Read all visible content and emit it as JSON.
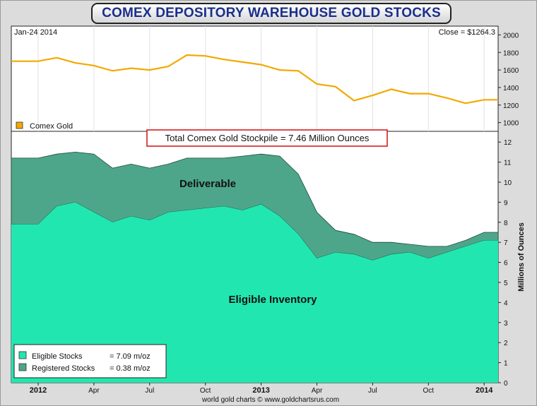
{
  "title": "COMEX DEPOSITORY WAREHOUSE GOLD STOCKS",
  "header": {
    "date": "Jan-24  2014",
    "close": "Close = $1264.3"
  },
  "stockpile_box": "Total Comex Gold Stockpile = 7.46 Million Ounces",
  "area_labels": {
    "deliverable": "Deliverable",
    "eligible": "Eligible Inventory"
  },
  "footer": "world gold charts © www.goldchartsrus.com",
  "colors": {
    "gold_line": "#f2a900",
    "eligible": "#22e6b0",
    "registered": "#4ea68a",
    "box_border": "#d01010",
    "title": "#1a2f8c"
  },
  "chart_data": [
    {
      "type": "line",
      "legend": [
        "Comex Gold"
      ],
      "ylim": [
        900,
        2100
      ],
      "y_ticks": [
        "1000",
        "1200",
        "1400",
        "1600",
        "1800",
        "2000"
      ],
      "x_ticks": [
        "2012",
        "Apr",
        "Jul",
        "Oct",
        "2013",
        "Apr",
        "Jul",
        "Oct",
        "2014"
      ],
      "x": [
        "2012-01",
        "2012-02",
        "2012-03",
        "2012-04",
        "2012-05",
        "2012-06",
        "2012-07",
        "2012-08",
        "2012-09",
        "2012-10",
        "2012-11",
        "2012-12",
        "2013-01",
        "2013-02",
        "2013-03",
        "2013-04",
        "2013-05",
        "2013-06",
        "2013-07",
        "2013-08",
        "2013-09",
        "2013-10",
        "2013-11",
        "2013-12",
        "2014-01"
      ],
      "series": [
        {
          "name": "Comex Gold",
          "values": [
            1700,
            1740,
            1680,
            1650,
            1590,
            1620,
            1600,
            1640,
            1770,
            1760,
            1720,
            1690,
            1660,
            1600,
            1590,
            1440,
            1410,
            1250,
            1310,
            1380,
            1330,
            1330,
            1280,
            1220,
            1260
          ]
        }
      ]
    },
    {
      "type": "area",
      "ylabel": "Millions of Ounces",
      "ylim": [
        0,
        12.5
      ],
      "y_ticks": [
        "0",
        "1",
        "2",
        "3",
        "4",
        "5",
        "6",
        "7",
        "8",
        "9",
        "10",
        "11",
        "12"
      ],
      "x_ticks": [
        "2012",
        "Apr",
        "Jul",
        "Oct",
        "2013",
        "Apr",
        "Jul",
        "Oct",
        "2014"
      ],
      "legend": [
        {
          "label": "Eligible Stocks",
          "value": "= 7.09 m/oz"
        },
        {
          "label": "Registered Stocks",
          "value": "= 0.38 m/oz"
        }
      ],
      "x": [
        "2012-01",
        "2012-02",
        "2012-03",
        "2012-04",
        "2012-05",
        "2012-06",
        "2012-07",
        "2012-08",
        "2012-09",
        "2012-10",
        "2012-11",
        "2012-12",
        "2013-01",
        "2013-02",
        "2013-03",
        "2013-04",
        "2013-05",
        "2013-06",
        "2013-07",
        "2013-08",
        "2013-09",
        "2013-10",
        "2013-11",
        "2013-12",
        "2014-01"
      ],
      "series": [
        {
          "name": "Eligible Stocks",
          "values": [
            7.9,
            8.8,
            9.0,
            8.5,
            8.0,
            8.3,
            8.1,
            8.5,
            8.6,
            8.7,
            8.8,
            8.6,
            8.9,
            8.3,
            7.4,
            6.2,
            6.5,
            6.4,
            6.1,
            6.4,
            6.5,
            6.2,
            6.5,
            6.8,
            7.1
          ]
        },
        {
          "name": "Registered Stocks",
          "values": [
            3.3,
            2.6,
            2.5,
            2.9,
            2.7,
            2.6,
            2.6,
            2.4,
            2.6,
            2.5,
            2.4,
            2.7,
            2.5,
            3.0,
            3.0,
            2.3,
            1.1,
            1.0,
            0.9,
            0.6,
            0.4,
            0.6,
            0.3,
            0.3,
            0.4
          ]
        }
      ]
    }
  ]
}
